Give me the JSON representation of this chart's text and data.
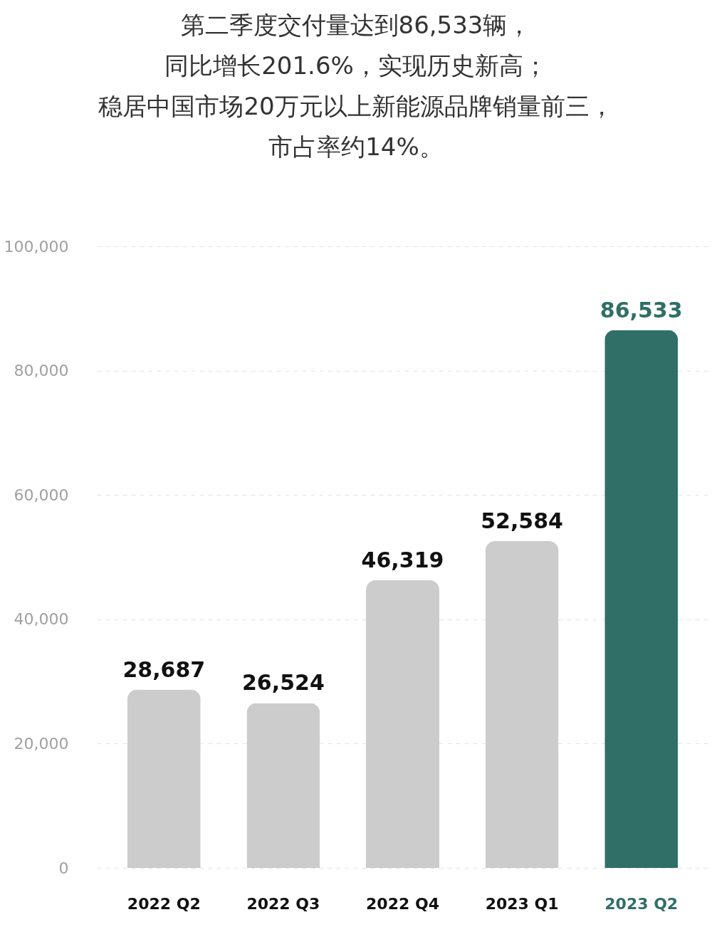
{
  "chart_data": {
    "type": "bar",
    "title": [
      "第二季度交付量达到86,533辆，",
      "同比增长201.6%，实现历史新高；",
      "稳居中国市场20万元以上新能源品牌销量前三，",
      "市占率约14%。"
    ],
    "categories": [
      "2022 Q2",
      "2022 Q3",
      "2022 Q4",
      "2023 Q1",
      "2023 Q2"
    ],
    "values": [
      28687,
      26524,
      46319,
      52584,
      86533
    ],
    "value_labels": [
      "28,687",
      "26,524",
      "46,319",
      "52,584",
      "86,533"
    ],
    "colors": [
      "#cccccc",
      "#cccccc",
      "#cccccc",
      "#cccccc",
      "#2f6f68"
    ],
    "ylim": [
      0,
      100000
    ],
    "yticks": [
      0,
      {
        "value": 20000,
        "label": "20,000"
      },
      {
        "value": 40000,
        "label": "40,000"
      },
      {
        "value": 60000,
        "label": "60,000"
      },
      {
        "value": 80000,
        "label": "80,000"
      },
      {
        "value": 100000,
        "label": "100,000"
      }
    ],
    "grid": "y"
  }
}
